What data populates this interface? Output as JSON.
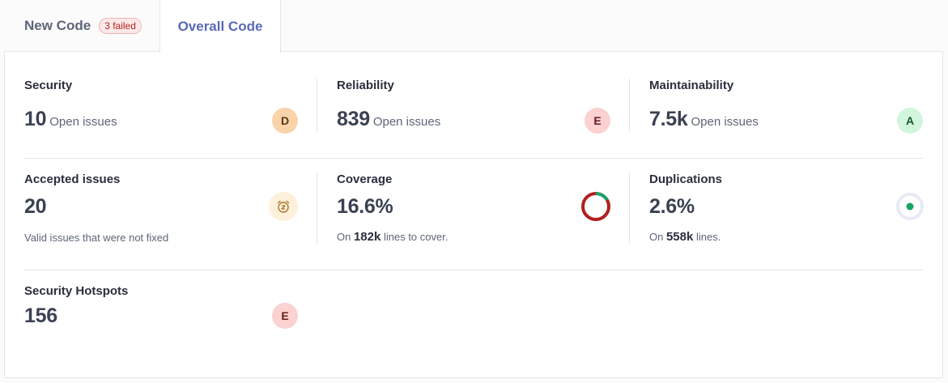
{
  "tabs": {
    "new_code": {
      "label": "New Code",
      "badge": "3 failed"
    },
    "overall_code": {
      "label": "Overall Code"
    }
  },
  "colors": {
    "rating_D": "#fbd3a9",
    "rating_E": "#fbd1d1",
    "rating_A": "#d2f5dd",
    "coverage_covered": "#1aa367",
    "coverage_uncovered": "#b21f1f",
    "accent": "#5969b5"
  },
  "security": {
    "title": "Security",
    "value": "10",
    "unit": "Open issues",
    "rating": "D"
  },
  "reliability": {
    "title": "Reliability",
    "value": "839",
    "unit": "Open issues",
    "rating": "E"
  },
  "maintainability": {
    "title": "Maintainability",
    "value": "7.5k",
    "unit": "Open issues",
    "rating": "A"
  },
  "accepted": {
    "title": "Accepted issues",
    "value": "20",
    "note": "Valid issues that were not fixed",
    "icon": "alarm-clock-snooze-icon"
  },
  "coverage": {
    "title": "Coverage",
    "value": "16.6%",
    "note_prefix": "On",
    "note_value": "182k",
    "note_suffix": "lines to cover.",
    "covered_fraction": 0.166
  },
  "duplications": {
    "title": "Duplications",
    "value": "2.6%",
    "note_prefix": "On",
    "note_value": "558k",
    "note_suffix": "lines."
  },
  "hotspots": {
    "title": "Security Hotspots",
    "value": "156",
    "rating": "E"
  }
}
